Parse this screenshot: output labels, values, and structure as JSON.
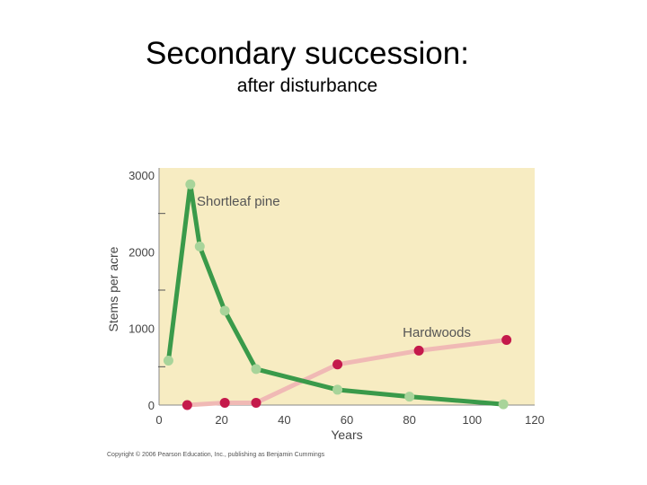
{
  "slide": {
    "title": "Secondary succession:",
    "subtitle": "after disturbance",
    "copyright": "Copyright © 2006 Pearson Education, Inc., publishing as Benjamin Cummings"
  },
  "chart_data": {
    "type": "line",
    "title": "",
    "xlabel": "Years",
    "ylabel": "Stems per acre",
    "xlim": [
      0,
      120
    ],
    "ylim": [
      0,
      3000
    ],
    "xticks": [
      0,
      20,
      40,
      60,
      80,
      100,
      120
    ],
    "yticks": [
      0,
      1000,
      2000,
      3000
    ],
    "grid": false,
    "legend": "none (series labeled inline)",
    "plot_background": "#f7ecc2",
    "series": [
      {
        "name": "Shortleaf pine",
        "line_color": "#3a9a4a",
        "marker_color": "#a8d49a",
        "x": [
          3,
          10,
          13,
          21,
          31,
          57,
          80,
          110
        ],
        "y": [
          580,
          2880,
          2070,
          1230,
          470,
          200,
          110,
          10
        ]
      },
      {
        "name": "Hardwoods",
        "line_color": "#f0b9b5",
        "marker_color": "#c4194b",
        "x": [
          9,
          21,
          31,
          57,
          83,
          111
        ],
        "y": [
          0,
          30,
          30,
          530,
          710,
          850
        ]
      }
    ]
  }
}
